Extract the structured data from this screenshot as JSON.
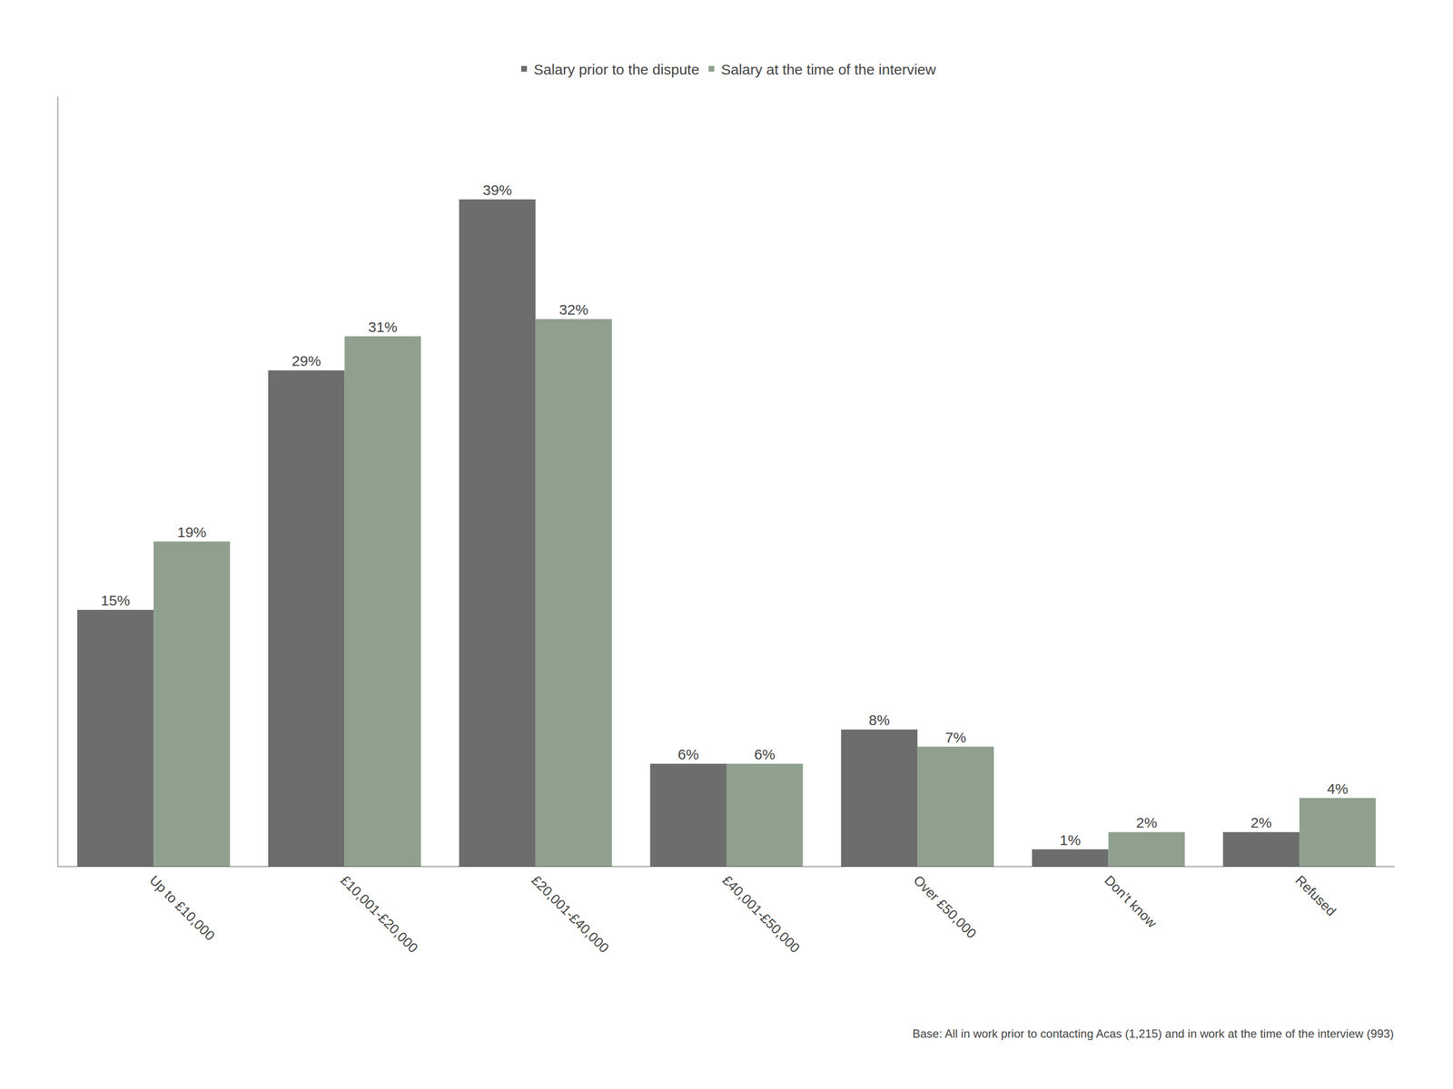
{
  "chart_data": {
    "type": "bar",
    "categories": [
      "Up to £10,000",
      "£10,001-£20,000",
      "£20,001-£40,000",
      "£40,001-£50,000",
      "Over £50,000",
      "Don’t know",
      "Refused"
    ],
    "series": [
      {
        "name": "Salary prior to the dispute",
        "color": "#6d6d6d",
        "values": [
          15,
          29,
          39,
          6,
          8,
          1,
          2
        ],
        "value_labels": [
          "15%",
          "29%",
          "39%",
          "6%",
          "8%",
          "1%",
          "2%"
        ]
      },
      {
        "name": "Salary at the time of the interview",
        "color": "#8fa08f",
        "values": [
          19,
          31,
          32,
          6,
          7,
          2,
          4
        ],
        "value_labels": [
          "19%",
          "31%",
          "32%",
          "6%",
          "7%",
          "2%",
          "4%"
        ]
      }
    ],
    "ylim": [
      0,
      45
    ],
    "grid": false,
    "legend": "top",
    "data_labels": true,
    "tick_labels": "x",
    "annotations": [
      "Base: All in work prior to contacting Acas (1,215) and in work at the time of the interview (993)"
    ]
  }
}
